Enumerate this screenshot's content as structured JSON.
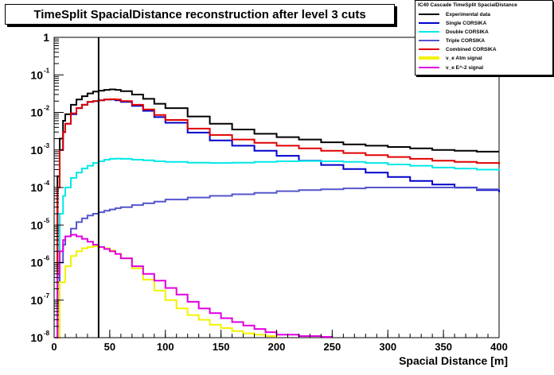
{
  "chart_data": {
    "type": "line",
    "title": "TimeSplit SpacialDistance reconstruction after level 3 cuts",
    "xlabel": "Spacial Distance [m]",
    "ylabel": "",
    "xlim": [
      0,
      400
    ],
    "ylim": [
      1e-08,
      1
    ],
    "yscale": "log",
    "x_ticks": [
      "0",
      "50",
      "100",
      "150",
      "200",
      "250",
      "300",
      "350",
      "400"
    ],
    "y_ticks": [
      {
        "mant": "10",
        "exp": "-8"
      },
      {
        "mant": "10",
        "exp": "-7"
      },
      {
        "mant": "10",
        "exp": "-6"
      },
      {
        "mant": "10",
        "exp": "-5"
      },
      {
        "mant": "10",
        "exp": "-4"
      },
      {
        "mant": "10",
        "exp": "-3"
      },
      {
        "mant": "10",
        "exp": "-2"
      },
      {
        "mant": "10",
        "exp": "-1"
      },
      {
        "mant": "1",
        "exp": ""
      }
    ],
    "legend_title": "IC40 Cascade TimeSplit SpacialDistance",
    "legend_placement": "top-right",
    "cut_line_x": 40,
    "series": [
      {
        "name": "Experimental data",
        "color": "#000000",
        "x": [
          1,
          3,
          5,
          8,
          10,
          15,
          20,
          25,
          30,
          35,
          40,
          45,
          50,
          55,
          60,
          70,
          80,
          90,
          100,
          120,
          140,
          160,
          180,
          200,
          220,
          240,
          260,
          280,
          300,
          320,
          340,
          360,
          380,
          400
        ],
        "y": [
          1e-08,
          0.0002,
          0.002,
          0.006,
          0.009,
          0.016,
          0.022,
          0.027,
          0.032,
          0.036,
          0.038,
          0.04,
          0.041,
          0.04,
          0.037,
          0.03,
          0.023,
          0.017,
          0.013,
          0.0078,
          0.005,
          0.0035,
          0.0027,
          0.0022,
          0.0019,
          0.0016,
          0.0014,
          0.0013,
          0.0012,
          0.0011,
          0.001,
          0.00095,
          0.0009,
          0.0009
        ]
      },
      {
        "name": "Single CORSIKA",
        "color": "#0000cc",
        "x": [
          1,
          3,
          5,
          8,
          10,
          15,
          20,
          25,
          30,
          35,
          40,
          45,
          50,
          55,
          60,
          70,
          80,
          90,
          100,
          120,
          140,
          160,
          180,
          200,
          220,
          240,
          260,
          280,
          300,
          320,
          340,
          360,
          380,
          400
        ],
        "y": [
          1e-08,
          0.0001,
          0.001,
          0.003,
          0.005,
          0.009,
          0.013,
          0.016,
          0.019,
          0.02,
          0.021,
          0.022,
          0.022,
          0.021,
          0.019,
          0.015,
          0.011,
          0.0075,
          0.0053,
          0.0029,
          0.0018,
          0.0013,
          0.00095,
          0.0007,
          0.00052,
          0.0004,
          0.00031,
          0.00025,
          0.00019,
          0.00015,
          0.00012,
          0.0001,
          8.5e-05,
          7.5e-05
        ]
      },
      {
        "name": "Double CORSIKA",
        "color": "#00e8e8",
        "x": [
          1,
          3,
          5,
          8,
          10,
          15,
          20,
          25,
          30,
          35,
          40,
          45,
          50,
          55,
          60,
          70,
          80,
          90,
          100,
          120,
          140,
          160,
          180,
          200,
          220,
          240,
          260,
          280,
          300,
          320,
          340,
          360,
          380,
          400
        ],
        "y": [
          1e-08,
          1e-06,
          2e-05,
          6e-05,
          0.0001,
          0.00018,
          0.00025,
          0.00032,
          0.00038,
          0.00045,
          0.0005,
          0.00055,
          0.00058,
          0.00059,
          0.00058,
          0.00055,
          0.00053,
          0.0005,
          0.00048,
          0.00046,
          0.00045,
          0.00046,
          0.00048,
          0.0005,
          0.00051,
          0.0005,
          0.00048,
          0.00045,
          0.00041,
          0.00038,
          0.00034,
          0.00032,
          0.0003,
          0.00028
        ]
      },
      {
        "name": "Triple CORSIKA",
        "color": "#5555cc",
        "x": [
          1,
          3,
          5,
          8,
          10,
          15,
          20,
          25,
          30,
          35,
          40,
          45,
          50,
          55,
          60,
          70,
          80,
          90,
          100,
          120,
          140,
          160,
          180,
          200,
          220,
          240,
          260,
          280,
          300,
          320,
          340,
          360,
          380,
          400
        ],
        "y": [
          1e-08,
          1e-07,
          1e-06,
          3e-06,
          5e-06,
          8e-06,
          1.2e-05,
          1.5e-05,
          1.8e-05,
          2e-05,
          2.2e-05,
          2.4e-05,
          2.6e-05,
          2.8e-05,
          3e-05,
          3.4e-05,
          3.8e-05,
          4.2e-05,
          4.8e-05,
          5.4e-05,
          6e-05,
          6.6e-05,
          7.2e-05,
          8e-05,
          8.5e-05,
          9e-05,
          9.5e-05,
          0.0001,
          0.0001,
          0.0001,
          0.0001,
          9.8e-05,
          9e-05,
          8.5e-05
        ]
      },
      {
        "name": "Combined CORSIKA",
        "color": "#e00000",
        "x": [
          1,
          3,
          5,
          8,
          10,
          15,
          20,
          25,
          30,
          35,
          40,
          45,
          50,
          55,
          60,
          70,
          80,
          90,
          100,
          120,
          140,
          160,
          180,
          200,
          220,
          240,
          260,
          280,
          300,
          320,
          340,
          360,
          380,
          400
        ],
        "y": [
          1e-08,
          0.0001,
          0.001,
          0.003,
          0.005,
          0.0095,
          0.013,
          0.016,
          0.019,
          0.02,
          0.021,
          0.022,
          0.0225,
          0.022,
          0.02,
          0.016,
          0.012,
          0.0085,
          0.0063,
          0.0037,
          0.0025,
          0.0019,
          0.00155,
          0.0013,
          0.0011,
          0.00095,
          0.00083,
          0.00073,
          0.00065,
          0.00058,
          0.00052,
          0.00048,
          0.00045,
          0.00042
        ]
      },
      {
        "name": "ν_e Atm signal",
        "color": "#f2f200",
        "x": [
          1,
          5,
          10,
          15,
          20,
          25,
          30,
          35,
          40,
          45,
          50,
          55,
          60,
          70,
          80,
          90,
          100,
          110,
          120,
          130,
          140,
          150,
          160,
          170,
          180,
          190,
          200
        ],
        "y": [
          1e-08,
          3e-07,
          8e-07,
          1.5e-06,
          2e-06,
          2.4e-06,
          2.6e-06,
          2.7e-06,
          2.6e-06,
          2.4e-06,
          2.1e-06,
          1.7e-06,
          1.3e-06,
          7e-07,
          3.5e-07,
          1.8e-07,
          1e-07,
          6e-08,
          4e-08,
          3e-08,
          2.2e-08,
          1.8e-08,
          1.5e-08,
          1.3e-08,
          1.2e-08,
          1.1e-08,
          1e-08
        ]
      },
      {
        "name": "ν_e E^-2 signal",
        "color": "#e000e0",
        "x": [
          1,
          3,
          5,
          8,
          10,
          15,
          20,
          25,
          30,
          35,
          40,
          45,
          50,
          55,
          60,
          70,
          80,
          90,
          100,
          110,
          120,
          130,
          140,
          150,
          160,
          170,
          180,
          190,
          200,
          220,
          240,
          250
        ],
        "y": [
          1e-08,
          5e-07,
          2e-06,
          4e-06,
          5e-06,
          5.5e-06,
          5e-06,
          4.3e-06,
          3.6e-06,
          3e-06,
          2.6e-06,
          2.3e-06,
          2e-06,
          1.7e-06,
          1.3e-06,
          8e-07,
          5e-07,
          3.3e-07,
          2.1e-07,
          1.4e-07,
          9e-08,
          6e-08,
          4.5e-08,
          3.3e-08,
          2.6e-08,
          2.1e-08,
          1.7e-08,
          1.4e-08,
          1.2e-08,
          1.1e-08,
          1.05e-08,
          1e-08
        ]
      }
    ]
  }
}
